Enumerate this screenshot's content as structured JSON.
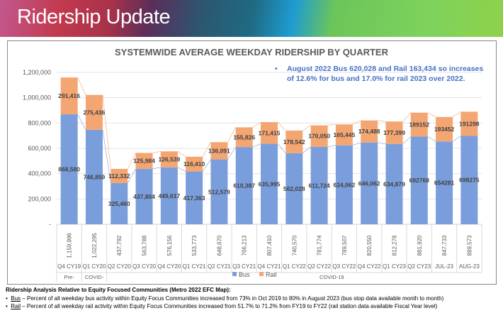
{
  "header": {
    "title": "Ridership Update"
  },
  "annotation": "August 2022 Bus 620,028 and Rail 163,434 so increases of 12.6% for bus and 17.0% for rail 2023 over 2022.",
  "chart_data": {
    "type": "bar",
    "stacked": true,
    "title": "SYSTEMWIDE AVERAGE WEEKDAY RIDERSHIP BY QUARTER",
    "categories": [
      "Q4 CY19",
      "Q1 CY20",
      "Q2 CY20",
      "Q3 CY20",
      "Q4 CY20",
      "Q1 CY21",
      "Q2 CY21",
      "Q3 CY21",
      "Q4 CY21",
      "Q1 CY22",
      "Q2 CY22",
      "Q3 CY22",
      "Q4 CY22",
      "Q1 CY23",
      "Q2 CY23",
      "JUL-23",
      "AUG-23"
    ],
    "series": [
      {
        "name": "Bus",
        "color": "#7a9edb",
        "values": [
          868580,
          746859,
          325460,
          437804,
          449617,
          417363,
          512579,
          610387,
          635995,
          562028,
          611724,
          624062,
          646062,
          634879,
          692768,
          654281,
          698275
        ],
        "labels": [
          "868,580",
          "746,859",
          "325,460",
          "437,804",
          "449,617",
          "417,363",
          "512,579",
          "610,387",
          "635,995",
          "562,028",
          "611,724",
          "624,062",
          "646,062",
          "634,879",
          "692768",
          "654281",
          "698275"
        ]
      },
      {
        "name": "Rail",
        "color": "#f4a672",
        "values": [
          291416,
          275436,
          112332,
          125984,
          126539,
          116410,
          136091,
          155826,
          171415,
          178542,
          170050,
          165445,
          174488,
          177399,
          189152,
          193452,
          191298
        ],
        "labels": [
          "291,416",
          "275,436",
          "112,332",
          "125,984",
          "126,539",
          "116,410",
          "136,091",
          "155,826",
          "171,415",
          "178,542",
          "170,050",
          "165,445",
          "174,488",
          "177,399",
          "189152",
          "193452",
          "191298"
        ]
      }
    ],
    "totals": [
      "1,159,996",
      "1,022,295",
      "437,792",
      "563,788",
      "576,156",
      "533,773",
      "648,670",
      "766,213",
      "807,410",
      "740,570",
      "781,774",
      "789,507",
      "820,550",
      "812,278",
      "881,920",
      "847,733",
      "889,573"
    ],
    "groups": [
      {
        "label": "Pre-",
        "at": 0
      },
      {
        "label": "COVID-",
        "at": 1
      },
      {
        "label": "COVID-19",
        "at": 10.5
      }
    ],
    "yticks": [
      "-",
      "200,000",
      "400,000",
      "600,000",
      "800,000",
      "1,000,000",
      "1,200,000"
    ],
    "ylim": [
      0,
      1200000
    ],
    "legend": "bottom"
  },
  "footer": {
    "heading": "Ridership Analysis Relative to Equity Focused Communities (Metro 2022 EFC Map):",
    "bus_term": "Bus",
    "bus_text": " – Percent of all weekday bus activity within Equity Focus Communities increased from 73% in Oct 2019 to 80% in August 2023 (bus stop data available month to month)",
    "rail_term": "Rail",
    "rail_text": " – Percent of all weekday rail activity within Equity Focus Communities increased from 51.7% to 71.2% from FY19 to FY22 (rail station data available Fiscal Year level)"
  }
}
